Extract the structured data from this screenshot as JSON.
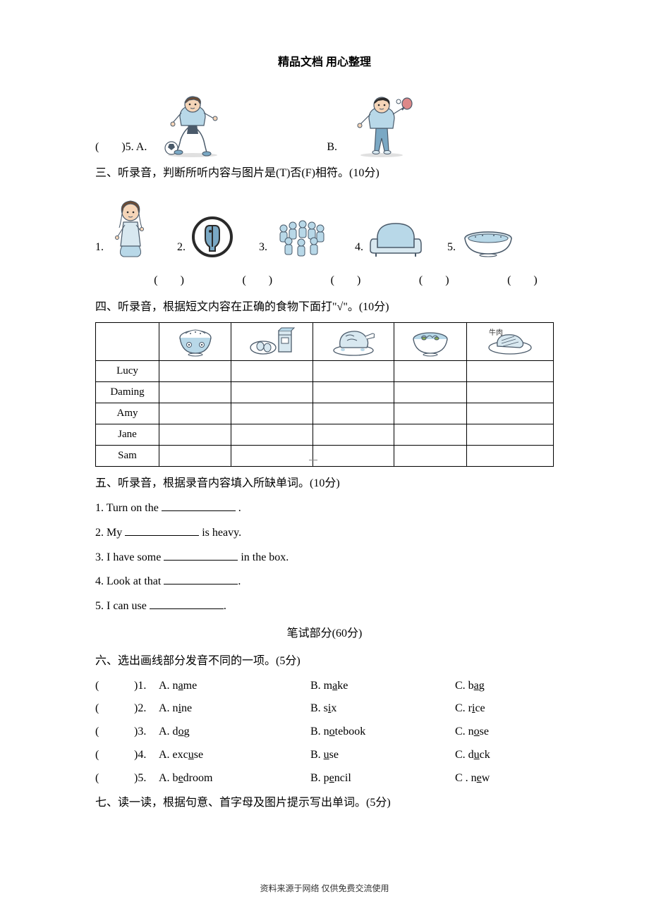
{
  "header": "精品文档 用心整理",
  "footer": "资料来源于网络 仅供免费交流使用",
  "q5": {
    "label": "(　　)5. A.",
    "optB": "B."
  },
  "sec3": {
    "title": "三、听录音，判断所听内容与图片是(T)否(F)相符。(10分)",
    "nums": [
      "1.",
      "2.",
      "3.",
      "4.",
      "5."
    ],
    "paren": "(　　)"
  },
  "sec4": {
    "title": "四、听录音，根据短文内容在正确的食物下面打\"√\"。(10分)",
    "names": [
      "Lucy",
      "Daming",
      "Amy",
      "Jane",
      "Sam"
    ],
    "beef_label": "牛肉"
  },
  "sec5": {
    "title": "五、听录音，根据录音内容填入所缺单词。(10分)",
    "items": [
      [
        "1. Turn on the ",
        " ."
      ],
      [
        "2. My ",
        " is heavy."
      ],
      [
        "3. I have some ",
        " in the box."
      ],
      [
        "4. Look at that ",
        "."
      ],
      [
        "5. I can use ",
        "."
      ]
    ]
  },
  "written_header": "笔试部分(60分)",
  "sec6": {
    "title": "六、选出画线部分发音不同的一项。(5分)",
    "rows": [
      {
        "n": ")1.",
        "a_pre": "A. n",
        "a_u": "a",
        "a_post": "me",
        "b_pre": "B. m",
        "b_u": "a",
        "b_post": "ke",
        "c_pre": "C. b",
        "c_u": "a",
        "c_post": "g"
      },
      {
        "n": ")2.",
        "a_pre": "A. n",
        "a_u": "i",
        "a_post": "ne",
        "b_pre": "B. s",
        "b_u": "i",
        "b_post": "x",
        "c_pre": "C. r",
        "c_u": "i",
        "c_post": "ce"
      },
      {
        "n": ")3.",
        "a_pre": "A. d",
        "a_u": "o",
        "a_post": "g",
        "b_pre": "B. n",
        "b_u": "o",
        "b_post": "tebook",
        "c_pre": "C. n",
        "c_u": "o",
        "c_post": "se"
      },
      {
        "n": ")4.",
        "a_pre": "A. exc",
        "a_u": "u",
        "a_post": "se",
        "b_pre": "B. ",
        "b_u": "u",
        "b_post": "se",
        "c_pre": "C. d",
        "c_u": "u",
        "c_post": "ck"
      },
      {
        "n": ")5.",
        "a_pre": "A. b",
        "a_u": "e",
        "a_post": "droom",
        "b_pre": "B. p",
        "b_u": "e",
        "b_post": "ncil",
        "c_pre": "C . n",
        "c_u": "e",
        "c_post": "w"
      }
    ]
  },
  "sec7": {
    "title": "七、读一读，根据句意、首字母及图片提示写出单词。(5分)"
  },
  "colors": {
    "skin": "#f5d5b8",
    "hair_brown": "#6b4a32",
    "hair_black": "#2a2a2a",
    "lblue": "#b8d8e8",
    "dblue": "#7aa8c4",
    "outline": "#4a5a6a",
    "white": "#ffffff",
    "shade": "#d8e8f0"
  }
}
